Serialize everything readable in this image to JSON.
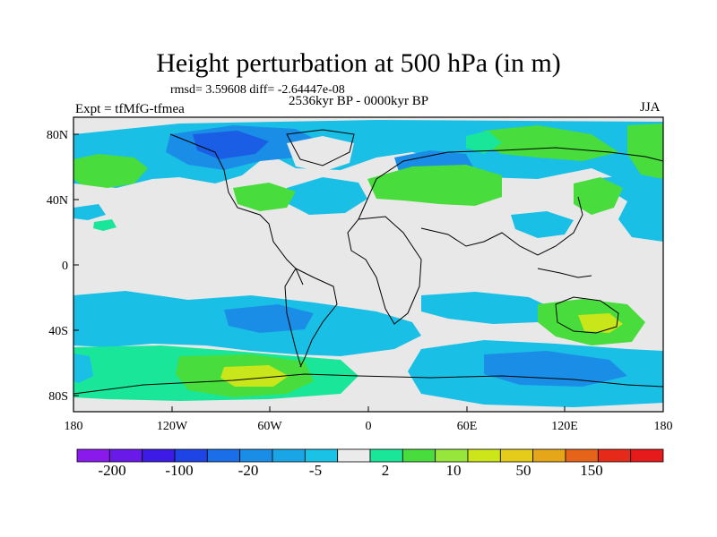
{
  "title": "Height perturbation at 500 hPa (in m)",
  "stats": "rmsd= 3.59608 diff= -2.64447e-08",
  "period": "2536kyr BP - 0000kyr BP",
  "experiment": "Expt = tfMfG-tfmea",
  "season": "JJA",
  "lat_ticks": [
    "80N",
    "40N",
    "0",
    "40S",
    "80S"
  ],
  "lon_ticks": [
    "180",
    "120W",
    "60W",
    "0",
    "60E",
    "120E",
    "180"
  ],
  "colorbar": {
    "colors": [
      "#8a1aeb",
      "#6a1ae8",
      "#3d1ae6",
      "#1f44e6",
      "#1a6ee8",
      "#1a8ee6",
      "#1aa6e6",
      "#1ac2e6",
      "#ebebeb",
      "#1ae69a",
      "#48dc3c",
      "#96e63c",
      "#cce61a",
      "#e6cc1a",
      "#e6a61a",
      "#e6641a",
      "#e62a1a",
      "#e61a1a"
    ],
    "labels": [
      "-200",
      "-100",
      "-20",
      "-5",
      "2",
      "10",
      "50",
      "150"
    ]
  },
  "colors": {
    "neutral": "#e8e8e8",
    "light_blue": "#1abfe6",
    "mid_blue": "#1a8ee6",
    "dark_blue": "#1a5ee6",
    "teal_green": "#1ae69a",
    "green": "#48dc3c",
    "yellow_green": "#c8e61a"
  }
}
